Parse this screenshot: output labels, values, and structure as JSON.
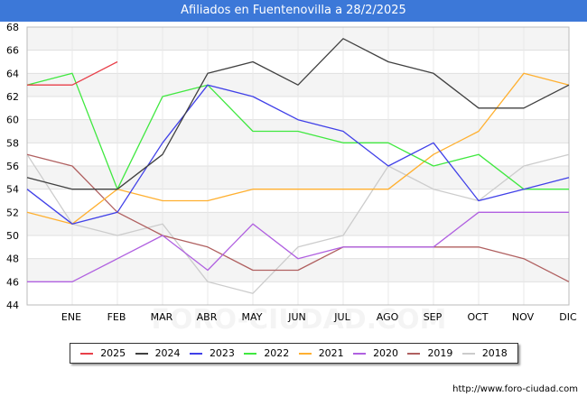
{
  "chart_data": {
    "type": "line",
    "title": "Afiliados en Fuentenovilla a 28/2/2025",
    "categories": [
      "",
      "ENE",
      "FEB",
      "MAR",
      "ABR",
      "MAY",
      "JUN",
      "JUL",
      "AGO",
      "SEP",
      "OCT",
      "NOV",
      "DIC"
    ],
    "ylim": [
      44,
      68
    ],
    "yticks": [
      44,
      46,
      48,
      50,
      52,
      54,
      56,
      58,
      60,
      62,
      64,
      66,
      68
    ],
    "grid": true,
    "legend_position": "bottom",
    "series": [
      {
        "name": "2025",
        "color": "#e8404a",
        "values": [
          63,
          63,
          65,
          null,
          null,
          null,
          null,
          null,
          null,
          null,
          null,
          null,
          null
        ]
      },
      {
        "name": "2024",
        "color": "#404040",
        "values": [
          55,
          54,
          54,
          57,
          64,
          65,
          63,
          67,
          65,
          64,
          61,
          61,
          63
        ]
      },
      {
        "name": "2023",
        "color": "#4040e8",
        "values": [
          54,
          51,
          52,
          58,
          63,
          62,
          60,
          59,
          56,
          58,
          53,
          54,
          55
        ]
      },
      {
        "name": "2022",
        "color": "#40e840",
        "values": [
          63,
          64,
          54,
          62,
          63,
          59,
          59,
          58,
          58,
          56,
          57,
          54,
          54
        ]
      },
      {
        "name": "2021",
        "color": "#ffb030",
        "values": [
          52,
          51,
          54,
          53,
          53,
          54,
          54,
          54,
          54,
          57,
          59,
          64,
          63
        ]
      },
      {
        "name": "2020",
        "color": "#b060e0",
        "values": [
          46,
          46,
          48,
          50,
          47,
          51,
          48,
          49,
          49,
          49,
          52,
          52,
          52
        ]
      },
      {
        "name": "2019",
        "color": "#b06060",
        "values": [
          57,
          56,
          52,
          50,
          49,
          47,
          47,
          49,
          49,
          49,
          49,
          48,
          46
        ]
      },
      {
        "name": "2018",
        "color": "#cccccc",
        "values": [
          57,
          51,
          50,
          51,
          46,
          45,
          49,
          50,
          56,
          54,
          53,
          56,
          57
        ]
      }
    ]
  },
  "footer_url": "http://www.foro-ciudad.com",
  "watermark": "FORO-CIUDAD.COM"
}
